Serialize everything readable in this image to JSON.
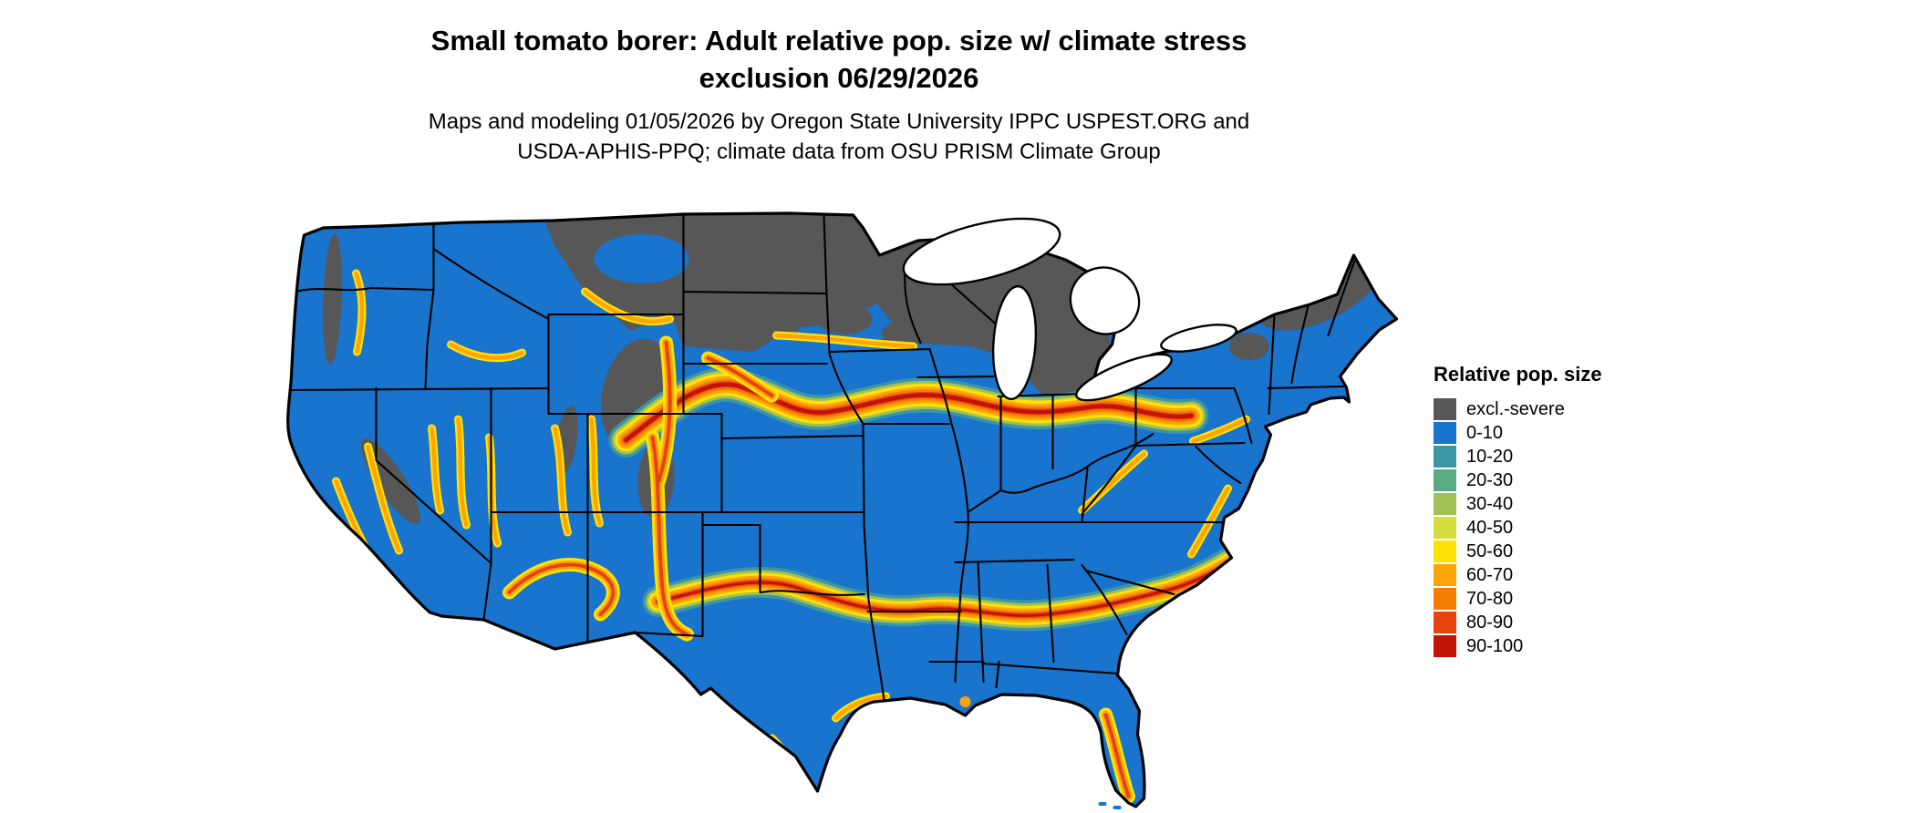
{
  "title": {
    "line1": "Small tomato borer: Adult relative pop. size w/ climate stress",
    "line2": "exclusion 06/29/2026"
  },
  "subtitle": {
    "line1": "Maps and modeling 01/05/2026 by Oregon State University IPPC USPEST.ORG and",
    "line2": "USDA-APHIS-PPQ; climate data from OSU PRISM Climate Group"
  },
  "legend": {
    "title": "Relative pop. size",
    "items": [
      {
        "label": "excl.-severe",
        "color": "#575757"
      },
      {
        "label": "0-10",
        "color": "#1874cd"
      },
      {
        "label": "10-20",
        "color": "#3c96a6"
      },
      {
        "label": "20-30",
        "color": "#5aab84"
      },
      {
        "label": "30-40",
        "color": "#a3c153"
      },
      {
        "label": "40-50",
        "color": "#d6dd3e"
      },
      {
        "label": "50-60",
        "color": "#ffe205"
      },
      {
        "label": "60-70",
        "color": "#fda409"
      },
      {
        "label": "70-80",
        "color": "#f47d05"
      },
      {
        "label": "80-90",
        "color": "#e6440e"
      },
      {
        "label": "90-100",
        "color": "#c21307"
      }
    ]
  },
  "map": {
    "border_color": "#000000",
    "water_color": "#ffffff",
    "background_color": "#ffffff"
  }
}
